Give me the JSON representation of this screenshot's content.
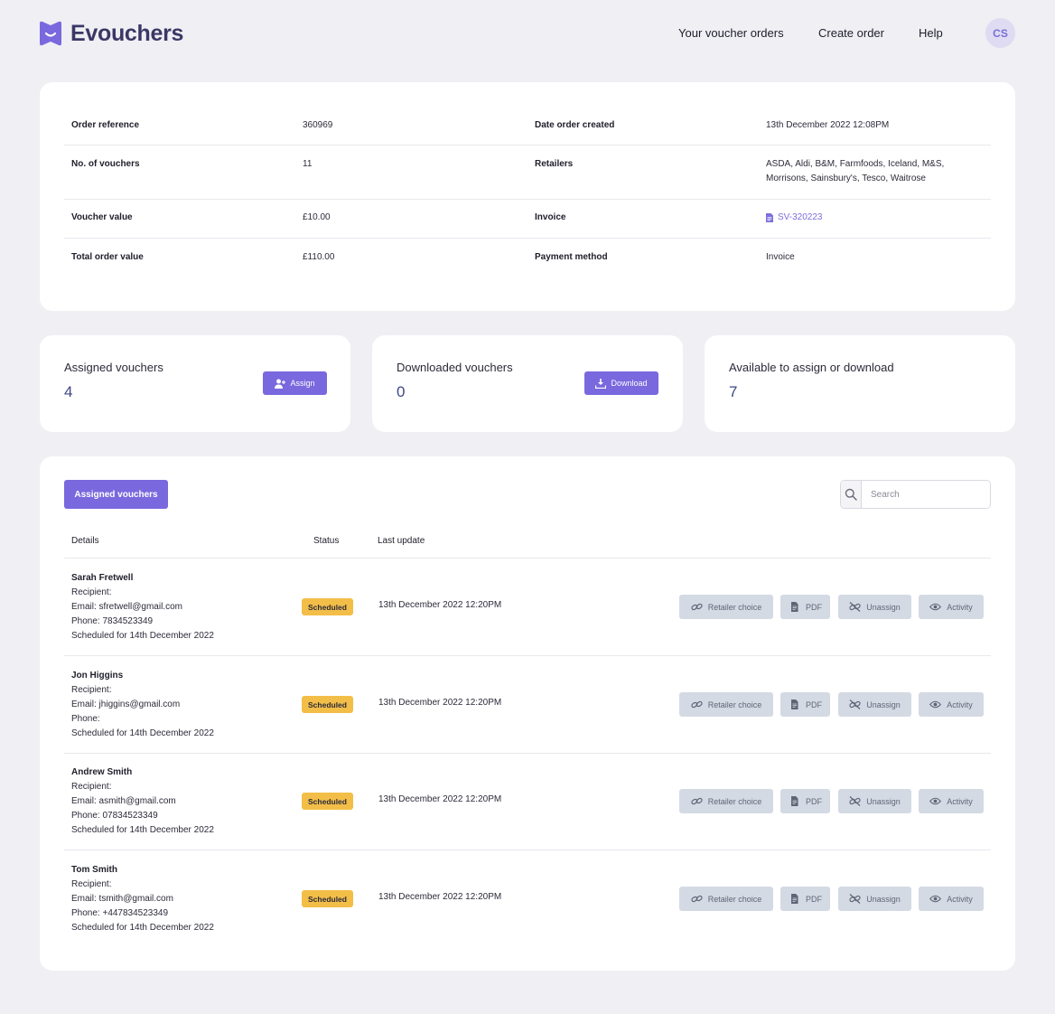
{
  "brand": {
    "name": "Evouchers",
    "accent": "#7a68de"
  },
  "nav": {
    "items": [
      "Your voucher orders",
      "Create order",
      "Help"
    ],
    "avatar_initials": "CS"
  },
  "order": {
    "reference_label": "Order reference",
    "reference": "360969",
    "date_label": "Date order created",
    "date": "13th December 2022 12:08PM",
    "count_label": "No. of vouchers",
    "count": "11",
    "retailers_label": "Retailers",
    "retailers": "ASDA, Aldi, B&M, Farmfoods, Iceland, M&S, Morrisons, Sainsbury's, Tesco, Waitrose",
    "voucher_value_label": "Voucher value",
    "voucher_value": "£10.00",
    "invoice_label": "Invoice",
    "invoice": "SV-320223",
    "total_label": "Total order value",
    "total": "£110.00",
    "payment_label": "Payment method",
    "payment": "Invoice"
  },
  "stats": {
    "assigned": {
      "title": "Assigned vouchers",
      "value": "4",
      "button": "Assign"
    },
    "downloaded": {
      "title": "Downloaded vouchers",
      "value": "0",
      "button": "Download"
    },
    "available": {
      "title": "Available to assign or download",
      "value": "7"
    }
  },
  "table": {
    "tab_label": "Assigned vouchers",
    "search_placeholder": "Search",
    "headers": {
      "details": "Details",
      "status": "Status",
      "last_update": "Last update"
    },
    "actions": {
      "retailer": "Retailer choice",
      "pdf": "PDF",
      "unassign": "Unassign",
      "activity": "Activity"
    },
    "status_color": "#f3be48",
    "rows": [
      {
        "name": "Sarah Fretwell",
        "recipient": "Recipient:",
        "email": "Email: sfretwell@gmail.com",
        "phone": "Phone: 7834523349",
        "scheduled": "Scheduled for 14th December 2022",
        "status": "Scheduled",
        "updated": "13th December 2022 12:20PM"
      },
      {
        "name": "Jon Higgins",
        "recipient": "Recipient:",
        "email": "Email: jhiggins@gmail.com",
        "phone": "Phone:",
        "scheduled": "Scheduled for 14th December 2022",
        "status": "Scheduled",
        "updated": "13th December 2022 12:20PM"
      },
      {
        "name": "Andrew Smith",
        "recipient": "Recipient:",
        "email": "Email: asmith@gmail.com",
        "phone": "Phone: 07834523349",
        "scheduled": "Scheduled for 14th December 2022",
        "status": "Scheduled",
        "updated": "13th December 2022 12:20PM"
      },
      {
        "name": "Tom Smith",
        "recipient": "Recipient:",
        "email": "Email: tsmith@gmail.com",
        "phone": "Phone: +447834523349",
        "scheduled": "Scheduled for 14th December 2022",
        "status": "Scheduled",
        "updated": "13th December 2022 12:20PM"
      }
    ]
  }
}
